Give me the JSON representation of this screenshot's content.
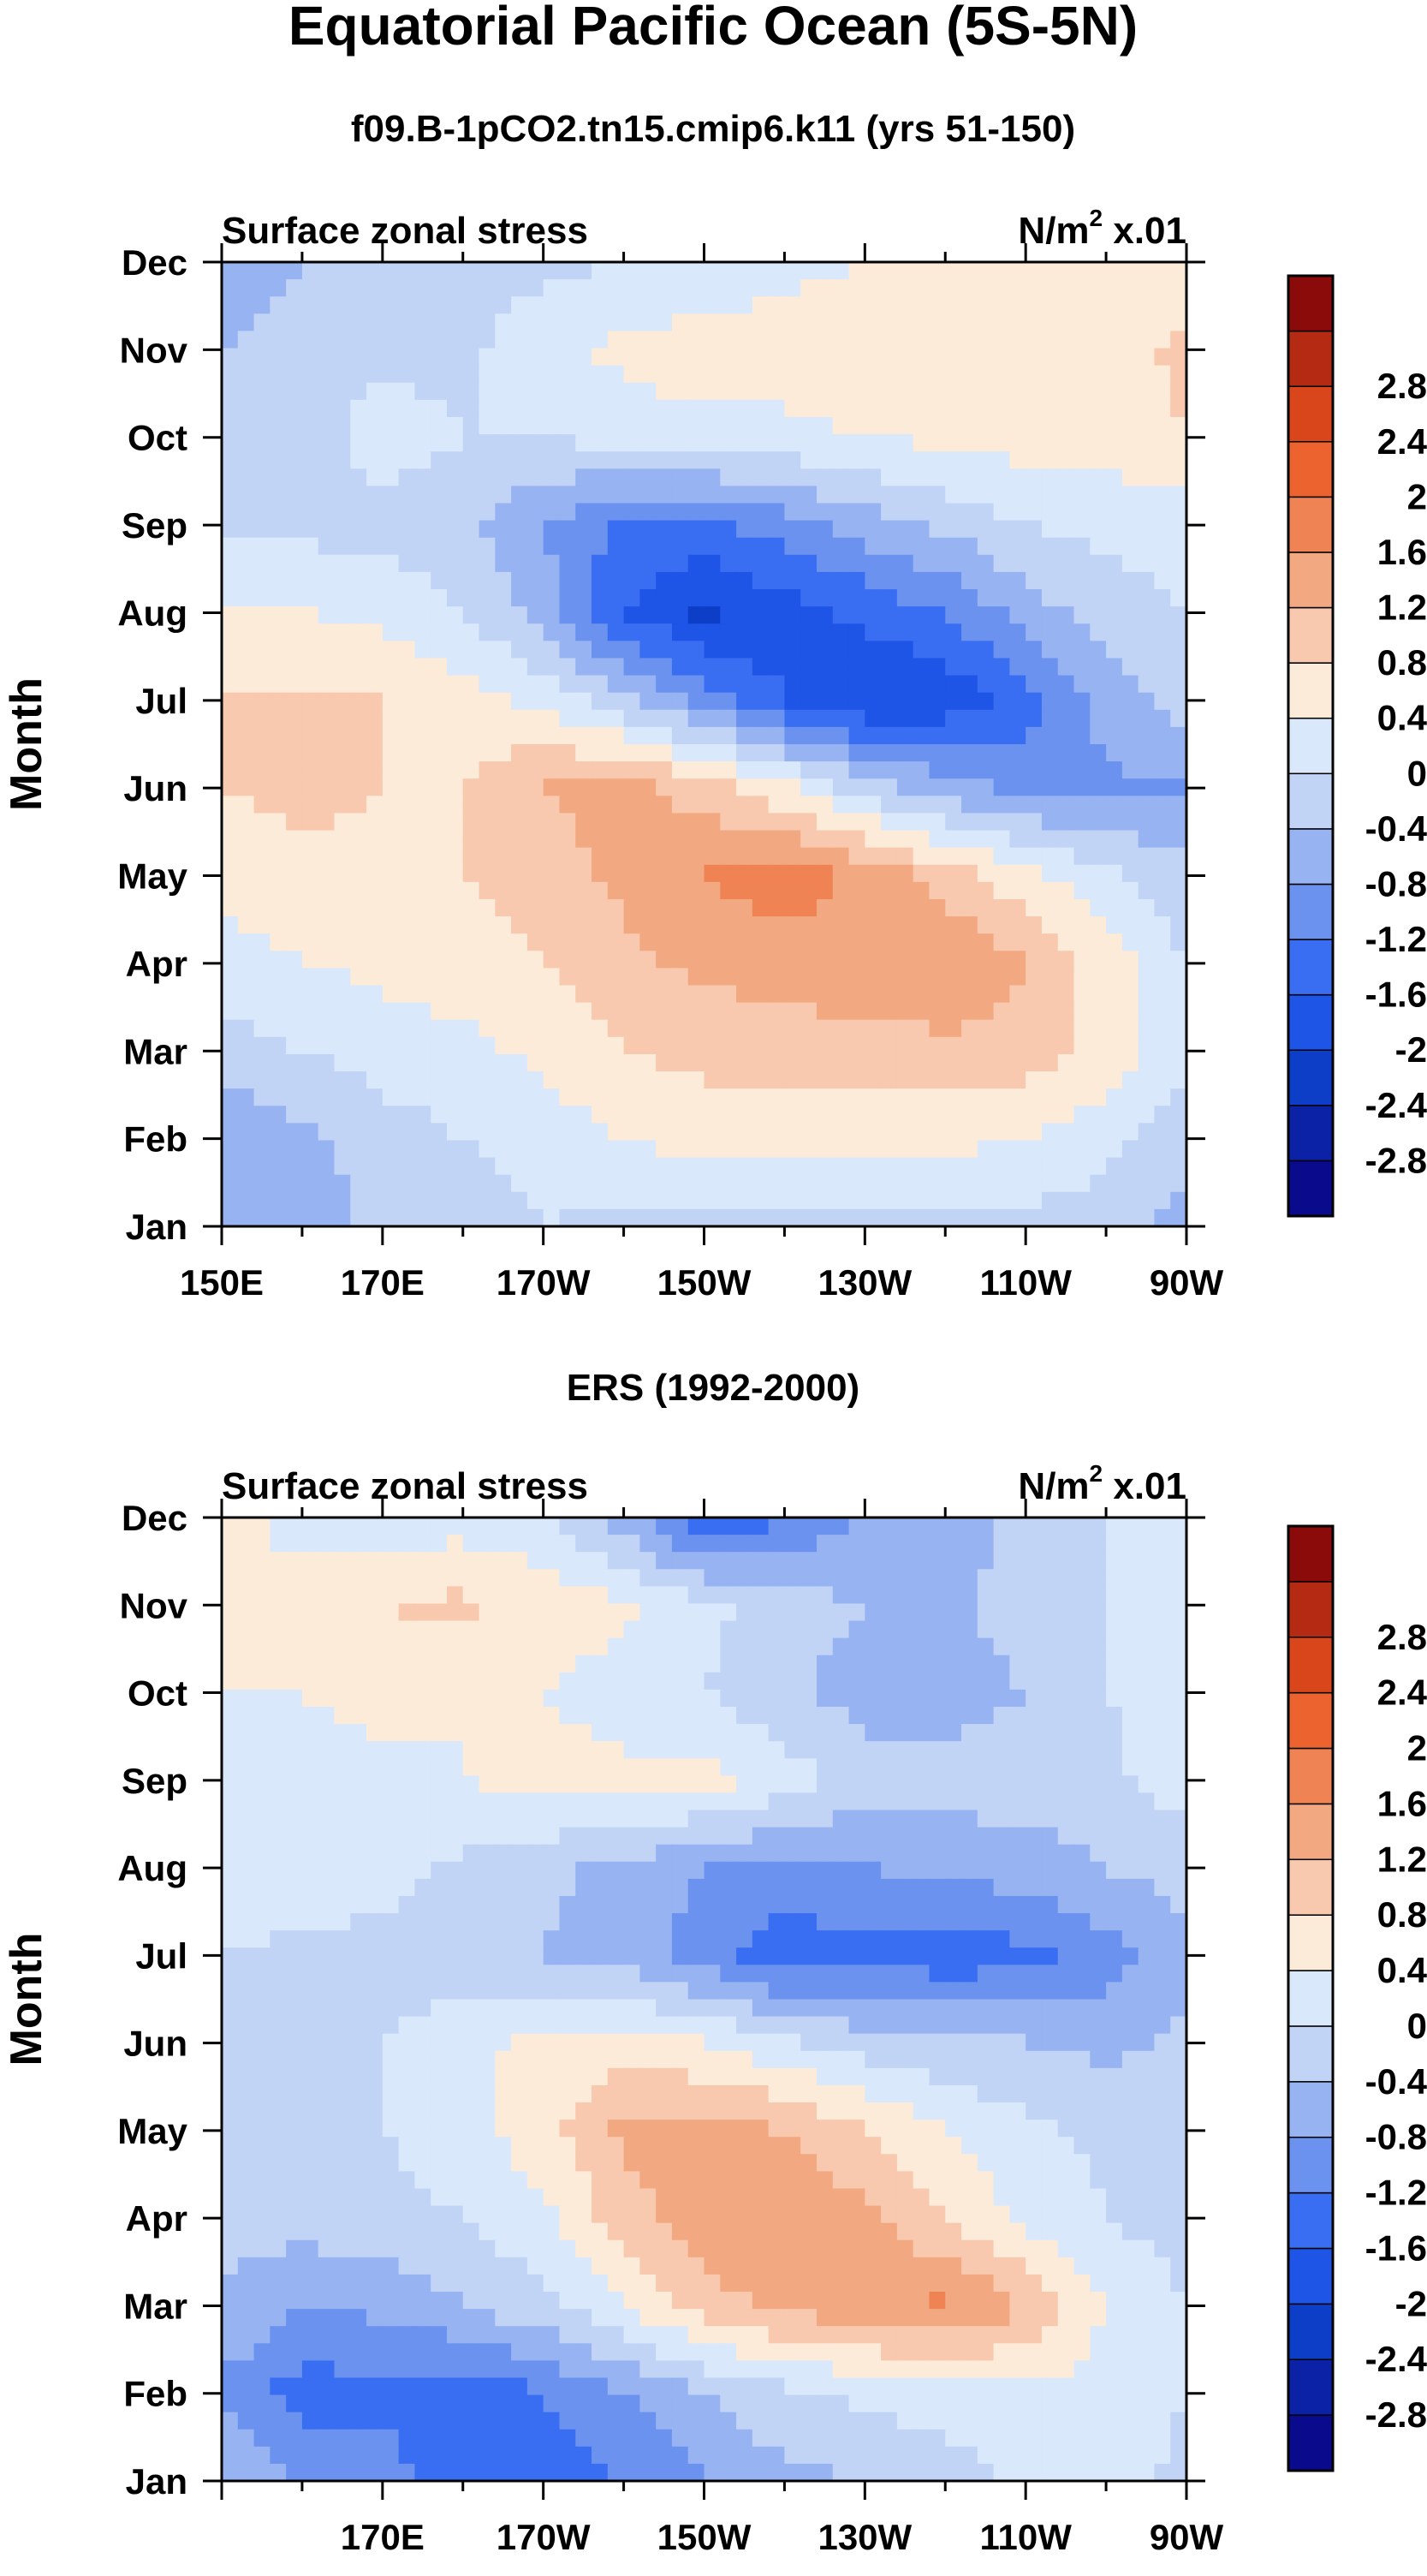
{
  "figure": {
    "title": "Equatorial Pacific Ocean (5S-5N)"
  },
  "colorbar": {
    "colors": [
      "#0a0a8c",
      "#0c22a6",
      "#0d3ec8",
      "#1e55e6",
      "#3a6ef2",
      "#6a92ee",
      "#97b3f2",
      "#c2d4f6",
      "#d9e8fb",
      "#fdebd9",
      "#f8c9ae",
      "#f2a982",
      "#ef8354",
      "#ec632f",
      "#d9461b",
      "#b52a12",
      "#8b0b0b"
    ],
    "levels": [
      -2.8,
      -2.4,
      -2.0,
      -1.6,
      -1.2,
      -0.8,
      -0.4,
      0.0,
      0.4,
      0.8,
      1.2,
      1.6,
      2.0,
      2.4,
      2.8
    ],
    "labels": [
      "-2.8",
      "-2.4",
      "-2",
      "-1.6",
      "-1.2",
      "-0.8",
      "-0.4",
      "0",
      "0.4",
      "0.8",
      "1.2",
      "1.6",
      "2",
      "2.4",
      "2.8"
    ]
  },
  "chart_data": [
    {
      "type": "heatmap",
      "title": "f09.B-1pCO2.tn15.cmip6.k11 (yrs 51-150)",
      "left_label": "Surface zonal stress",
      "right_label_main": "N/m",
      "right_label_sup": "2",
      "right_label_tail": " x.01",
      "ylabel": "Month",
      "x_ticks": [
        "150E",
        "170E",
        "170W",
        "150W",
        "130W",
        "110W",
        "90W"
      ],
      "y_ticks": [
        "Jan",
        "Feb",
        "Mar",
        "Apr",
        "May",
        "Jun",
        "Jul",
        "Aug",
        "Sep",
        "Oct",
        "Nov",
        "Dec"
      ],
      "x": [
        150,
        160,
        170,
        180,
        190,
        200,
        210,
        220,
        230,
        240,
        250,
        260,
        270
      ],
      "y": [
        "Jan",
        "Feb",
        "Mar",
        "Apr",
        "May",
        "Jun",
        "Jul",
        "Aug",
        "Sep",
        "Oct",
        "Nov",
        "Dec"
      ],
      "z": [
        [
          -0.8,
          -0.6,
          -0.3,
          -0.2,
          0.0,
          -0.1,
          -0.1,
          -0.2,
          -0.2,
          -0.1,
          -0.1,
          -0.2,
          -0.6
        ],
        [
          -0.7,
          -0.5,
          -0.2,
          0.0,
          0.2,
          0.4,
          0.6,
          0.6,
          0.6,
          0.5,
          0.4,
          0.1,
          -0.2
        ],
        [
          -0.2,
          0.0,
          0.2,
          0.3,
          0.5,
          0.8,
          0.9,
          1.0,
          1.0,
          1.1,
          1.0,
          0.7,
          0.1
        ],
        [
          0.2,
          0.4,
          0.5,
          0.6,
          0.8,
          1.1,
          1.3,
          1.4,
          1.5,
          1.6,
          1.2,
          0.6,
          0.0
        ],
        [
          0.6,
          0.7,
          0.7,
          0.8,
          1.0,
          1.3,
          1.6,
          1.8,
          1.5,
          1.0,
          0.5,
          0.1,
          -0.3
        ],
        [
          0.8,
          0.9,
          0.8,
          0.8,
          1.2,
          1.4,
          1.0,
          0.5,
          -0.2,
          -0.6,
          -0.9,
          -0.9,
          -0.8
        ],
        [
          0.8,
          0.9,
          0.8,
          0.6,
          0.3,
          -0.3,
          -1.0,
          -1.6,
          -2.0,
          -1.9,
          -1.4,
          -0.6,
          -0.2
        ],
        [
          0.4,
          0.4,
          0.3,
          0.0,
          -0.6,
          -1.6,
          -2.1,
          -1.8,
          -1.5,
          -1.2,
          -0.6,
          -0.2,
          0.0
        ],
        [
          -0.1,
          -0.1,
          -0.2,
          -0.3,
          -0.8,
          -1.3,
          -1.3,
          -1.0,
          -0.6,
          -0.3,
          0.0,
          0.1,
          0.2
        ],
        [
          -0.2,
          -0.2,
          0.2,
          0.0,
          0.0,
          0.2,
          0.3,
          0.3,
          0.4,
          0.5,
          0.6,
          0.6,
          0.8
        ],
        [
          -0.4,
          -0.3,
          -0.1,
          -0.1,
          0.3,
          0.5,
          0.6,
          0.6,
          0.6,
          0.6,
          0.6,
          0.6,
          0.9
        ],
        [
          -0.6,
          -0.4,
          -0.3,
          -0.2,
          -0.1,
          0.0,
          0.1,
          0.3,
          0.4,
          0.5,
          0.6,
          0.5,
          0.4
        ]
      ]
    },
    {
      "type": "heatmap",
      "title": "ERS (1992-2000)",
      "left_label": "Surface zonal stress",
      "right_label_main": "N/m",
      "right_label_sup": "2",
      "right_label_tail": " x.01",
      "ylabel": "Month",
      "x_ticks": [
        "170E",
        "170W",
        "150W",
        "130W",
        "110W",
        "90W"
      ],
      "y_ticks": [
        "Jan",
        "Feb",
        "Mar",
        "Apr",
        "May",
        "Jun",
        "Jul",
        "Aug",
        "Sep",
        "Oct",
        "Nov",
        "Dec"
      ],
      "x": [
        150,
        160,
        170,
        180,
        190,
        200,
        210,
        220,
        230,
        240,
        250,
        260,
        270
      ],
      "y": [
        "Jan",
        "Feb",
        "Mar",
        "Apr",
        "May",
        "Jun",
        "Jul",
        "Aug",
        "Sep",
        "Oct",
        "Nov",
        "Dec"
      ],
      "z": [
        [
          -0.4,
          -0.8,
          -1.0,
          -1.6,
          -1.4,
          -1.2,
          -0.8,
          -0.5,
          -0.4,
          -0.2,
          0.1,
          0.2,
          -0.1
        ],
        [
          -0.9,
          -1.4,
          -1.3,
          -1.5,
          -1.2,
          -0.8,
          -0.4,
          -0.1,
          0.1,
          0.2,
          0.3,
          0.2,
          0.0
        ],
        [
          -0.4,
          -0.8,
          -0.7,
          -0.4,
          -0.1,
          0.4,
          1.0,
          1.3,
          1.5,
          1.7,
          1.2,
          0.4,
          0.0
        ],
        [
          -0.3,
          -0.2,
          -0.2,
          0.0,
          0.3,
          1.0,
          1.5,
          1.6,
          1.3,
          0.8,
          0.3,
          0.0,
          -0.2
        ],
        [
          -0.2,
          0.0,
          0.0,
          0.3,
          0.6,
          1.3,
          1.4,
          1.2,
          0.8,
          0.4,
          0.1,
          -0.1,
          -0.2
        ],
        [
          -0.4,
          -0.2,
          0.0,
          0.3,
          0.5,
          0.6,
          0.4,
          0.1,
          -0.2,
          -0.3,
          -0.4,
          -0.5,
          -0.3
        ],
        [
          0.0,
          -0.1,
          -0.2,
          -0.3,
          -0.4,
          -0.6,
          -1.0,
          -1.5,
          -1.3,
          -1.5,
          -1.3,
          -1.0,
          -0.6
        ],
        [
          0.3,
          0.3,
          0.2,
          -0.1,
          -0.3,
          -0.5,
          -0.8,
          -0.9,
          -0.8,
          -0.7,
          -0.6,
          -0.4,
          -0.2
        ],
        [
          0.4,
          0.3,
          0.3,
          0.4,
          0.6,
          0.5,
          0.6,
          0.2,
          -0.2,
          -0.2,
          -0.2,
          -0.1,
          0.2
        ],
        [
          0.4,
          0.4,
          0.5,
          0.4,
          0.4,
          0.2,
          0.0,
          -0.3,
          -0.6,
          -0.6,
          -0.4,
          0.0,
          0.2
        ],
        [
          0.4,
          0.5,
          0.8,
          0.9,
          0.6,
          0.5,
          0.1,
          -0.2,
          -0.4,
          -0.5,
          -0.2,
          0.0,
          0.3
        ],
        [
          0.5,
          0.3,
          0.2,
          0.2,
          0.1,
          -0.6,
          -1.6,
          -1.2,
          -0.8,
          -0.6,
          -0.3,
          0.0,
          0.2
        ]
      ]
    }
  ]
}
